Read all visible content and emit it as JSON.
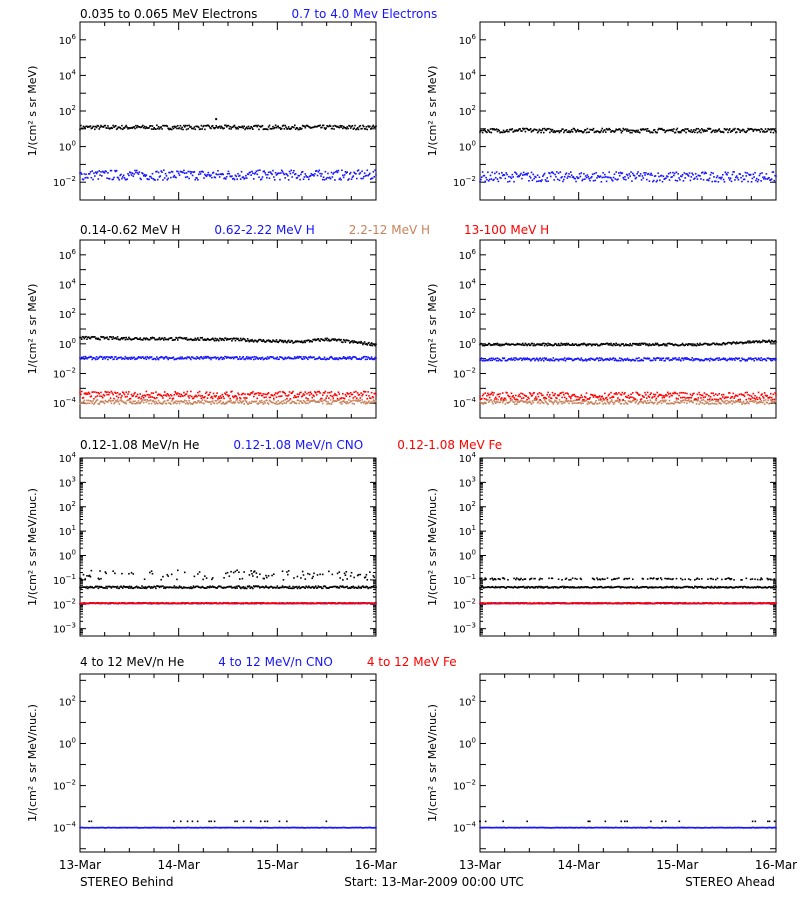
{
  "colors": {
    "black": "#000000",
    "blue": "#1414ff",
    "tan": "#c8825a",
    "red": "#ff0000"
  },
  "footer": {
    "left": "STEREO Behind",
    "center": "Start: 13-Mar-2009 00:00 UTC",
    "right": "STEREO Ahead"
  },
  "rows": [
    {
      "titles": [
        {
          "text": "0.035 to 0.065 MeV Electrons",
          "color": "black"
        },
        {
          "text": "0.7 to 4.0 Mev Electrons",
          "color": "blue"
        }
      ],
      "ylabel": "1/(cm² s sr MeV)"
    },
    {
      "titles": [
        {
          "text": "0.14-0.62 MeV H",
          "color": "black"
        },
        {
          "text": "0.62-2.22 MeV H",
          "color": "blue"
        },
        {
          "text": "2.2-12 MeV H",
          "color": "tan"
        },
        {
          "text": "13-100 MeV H",
          "color": "red"
        }
      ],
      "ylabel": "1/(cm² s sr MeV)"
    },
    {
      "titles": [
        {
          "text": "0.12-1.08 MeV/n He",
          "color": "black"
        },
        {
          "text": "0.12-1.08 MeV/n CNO",
          "color": "blue"
        },
        {
          "text": "0.12-1.08 MeV Fe",
          "color": "red"
        }
      ],
      "ylabel": "1/(cm² s sr MeV/nuc.)"
    },
    {
      "titles": [
        {
          "text": "4 to 12 MeV/n He",
          "color": "black"
        },
        {
          "text": "4 to 12 MeV/n CNO",
          "color": "blue"
        },
        {
          "text": "4 to 12 MeV Fe",
          "color": "red"
        }
      ],
      "ylabel": "1/(cm² s sr MeV/nuc.)"
    }
  ],
  "chart_data": {
    "type": "scatter",
    "x_tick_labels": [
      "13-Mar",
      "14-Mar",
      "15-Mar",
      "16-Mar"
    ],
    "x_range_days": [
      0,
      3
    ],
    "log_y": true,
    "panels": [
      {
        "id": "electrons-behind",
        "row": 0,
        "col": 0,
        "ylim": [
          0.001,
          10000000
        ],
        "ytick_exponents": [
          -2,
          0,
          2,
          4,
          6
        ],
        "series": [
          {
            "name": "0.035 to 0.065 MeV Electrons",
            "color": "black",
            "level": 12,
            "spread": 0.12,
            "spikes": [
              {
                "x": 1.38,
                "y": 35
              }
            ]
          },
          {
            "name": "0.7 to 4.0 Mev Electrons",
            "color": "blue",
            "level": 0.025,
            "spread": 0.28
          }
        ]
      },
      {
        "id": "electrons-ahead",
        "row": 0,
        "col": 1,
        "ylim": [
          0.001,
          10000000
        ],
        "ytick_exponents": [
          -2,
          0,
          2,
          4,
          6
        ],
        "series": [
          {
            "name": "0.035 to 0.065 MeV Electrons",
            "color": "black",
            "level": 8,
            "spread": 0.12
          },
          {
            "name": "0.7 to 4.0 Mev Electrons",
            "color": "blue",
            "level": 0.02,
            "spread": 0.28
          }
        ]
      },
      {
        "id": "protons-behind",
        "row": 1,
        "col": 0,
        "ylim": [
          1e-05,
          10000000
        ],
        "ytick_exponents": [
          -4,
          -2,
          0,
          2,
          4,
          6
        ],
        "series": [
          {
            "name": "0.14-0.62 MeV H",
            "color": "black",
            "trend": [
              [
                0,
                2.5
              ],
              [
                1.5,
                2.0
              ],
              [
                2.2,
                1.3
              ],
              [
                2.5,
                2.0
              ],
              [
                3,
                0.9
              ]
            ],
            "spread": 0.1
          },
          {
            "name": "0.62-2.22 MeV H",
            "color": "blue",
            "level": 0.11,
            "spread": 0.1
          },
          {
            "name": "2.2-12 MeV H",
            "color": "tan",
            "level": 0.00012,
            "spread": 0.15
          },
          {
            "name": "13-100 MeV H",
            "color": "red",
            "level": 0.00035,
            "spread": 0.25
          }
        ]
      },
      {
        "id": "protons-ahead",
        "row": 1,
        "col": 1,
        "ylim": [
          1e-05,
          10000000
        ],
        "ytick_exponents": [
          -4,
          -2,
          0,
          2,
          4,
          6
        ],
        "series": [
          {
            "name": "0.14-0.62 MeV H",
            "color": "black",
            "trend": [
              [
                0,
                0.9
              ],
              [
                2.3,
                0.9
              ],
              [
                3,
                1.6
              ]
            ],
            "spread": 0.08
          },
          {
            "name": "0.62-2.22 MeV H",
            "color": "blue",
            "level": 0.09,
            "spread": 0.1
          },
          {
            "name": "2.2-12 MeV H",
            "color": "tan",
            "level": 0.00012,
            "spread": 0.15
          },
          {
            "name": "13-100 MeV H",
            "color": "red",
            "level": 0.0003,
            "spread": 0.25
          }
        ]
      },
      {
        "id": "heavy-low-behind",
        "row": 2,
        "col": 0,
        "ylim": [
          0.0005,
          10000
        ],
        "ytick_exponents": [
          -3,
          -2,
          -1,
          0,
          1,
          2,
          3,
          4
        ],
        "series": [
          {
            "name": "0.12-1.08 MeV/n He",
            "color": "black",
            "level": 0.05,
            "upper": [
              0.1,
              0.25
            ],
            "spread": 0.05
          },
          {
            "name": "0.12-1.08 MeV/n CNO",
            "color": "blue",
            "level": 0.011,
            "spread": 0.02
          },
          {
            "name": "0.12-1.08 MeV Fe",
            "color": "red",
            "level": 0.011,
            "spread": 0.02
          }
        ]
      },
      {
        "id": "heavy-low-ahead",
        "row": 2,
        "col": 1,
        "ylim": [
          0.0005,
          10000
        ],
        "ytick_exponents": [
          -3,
          -2,
          -1,
          0,
          1,
          2,
          3,
          4
        ],
        "series": [
          {
            "name": "0.12-1.08 MeV/n He",
            "color": "black",
            "level": 0.05,
            "upper": [
              0.1,
              0.12
            ],
            "spread": 0.03
          },
          {
            "name": "0.12-1.08 MeV/n CNO",
            "color": "blue",
            "level": 0.011,
            "spread": 0.02
          },
          {
            "name": "0.12-1.08 MeV Fe",
            "color": "red",
            "level": 0.011,
            "spread": 0.02
          }
        ]
      },
      {
        "id": "heavy-high-behind",
        "row": 3,
        "col": 0,
        "ylim": [
          7e-06,
          2000
        ],
        "ytick_exponents": [
          -4,
          -2,
          0,
          2
        ],
        "series": [
          {
            "name": "4 to 12 MeV/n He",
            "color": "black",
            "level": 0.0002,
            "sparse": true
          },
          {
            "name": "4 to 12 MeV/n CNO",
            "color": "blue",
            "level": 0.0001,
            "spread": 0.01
          }
        ]
      },
      {
        "id": "heavy-high-ahead",
        "row": 3,
        "col": 1,
        "ylim": [
          7e-06,
          2000
        ],
        "ytick_exponents": [
          -4,
          -2,
          0,
          2
        ],
        "series": [
          {
            "name": "4 to 12 MeV/n He",
            "color": "black",
            "level": 0.0002,
            "sparse": true
          },
          {
            "name": "4 to 12 MeV/n CNO",
            "color": "blue",
            "level": 0.0001,
            "spread": 0.01
          }
        ]
      }
    ]
  }
}
